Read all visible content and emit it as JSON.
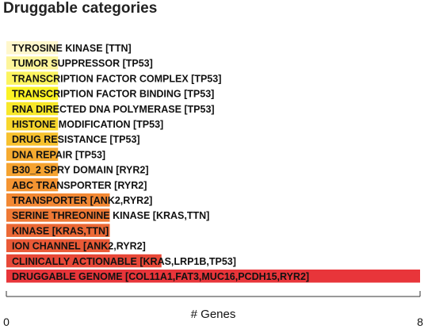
{
  "chart_data": {
    "type": "bar",
    "orientation": "horizontal",
    "title": "Druggable categories",
    "xlabel": "# Genes",
    "ylabel": "",
    "xlim": [
      0,
      8
    ],
    "x_ticks": [
      "0",
      "8"
    ],
    "grid": false,
    "categories": [
      "TYROSINE KINASE [TTN]",
      "TUMOR SUPPRESSOR [TP53]",
      "TRANSCRIPTION FACTOR COMPLEX [TP53]",
      "TRANSCRIPTION FACTOR BINDING [TP53]",
      "RNA DIRECTED DNA POLYMERASE [TP53]",
      "HISTONE MODIFICATION [TP53]",
      "DRUG RESISTANCE [TP53]",
      "DNA REPAIR [TP53]",
      "B30_2 SPRY DOMAIN [RYR2]",
      "ABC TRANSPORTER [RYR2]",
      "TRANSPORTER [ANK2,RYR2]",
      "SERINE THREONINE KINASE [KRAS,TTN]",
      "KINASE [KRAS,TTN]",
      "ION CHANNEL [ANK2,RYR2]",
      "CLINICALLY ACTIONABLE [KRAS,LRP1B,TP53]",
      "DRUGGABLE GENOME [COL11A1,FAT3,MUC16,PCDH15,RYR2]"
    ],
    "values": [
      1,
      1,
      1,
      1,
      1,
      1,
      1,
      1,
      1,
      1,
      2,
      2,
      2,
      2,
      3,
      8
    ],
    "colors": [
      "#fff7cc",
      "#fdf59a",
      "#fcf460",
      "#fbf324",
      "#f8e82a",
      "#f8d72c",
      "#f7c12e",
      "#f6ab30",
      "#f5a331",
      "#f59532",
      "#f28834",
      "#ef7935",
      "#ec6936",
      "#ea5a37",
      "#e84838",
      "#e8353a"
    ]
  }
}
